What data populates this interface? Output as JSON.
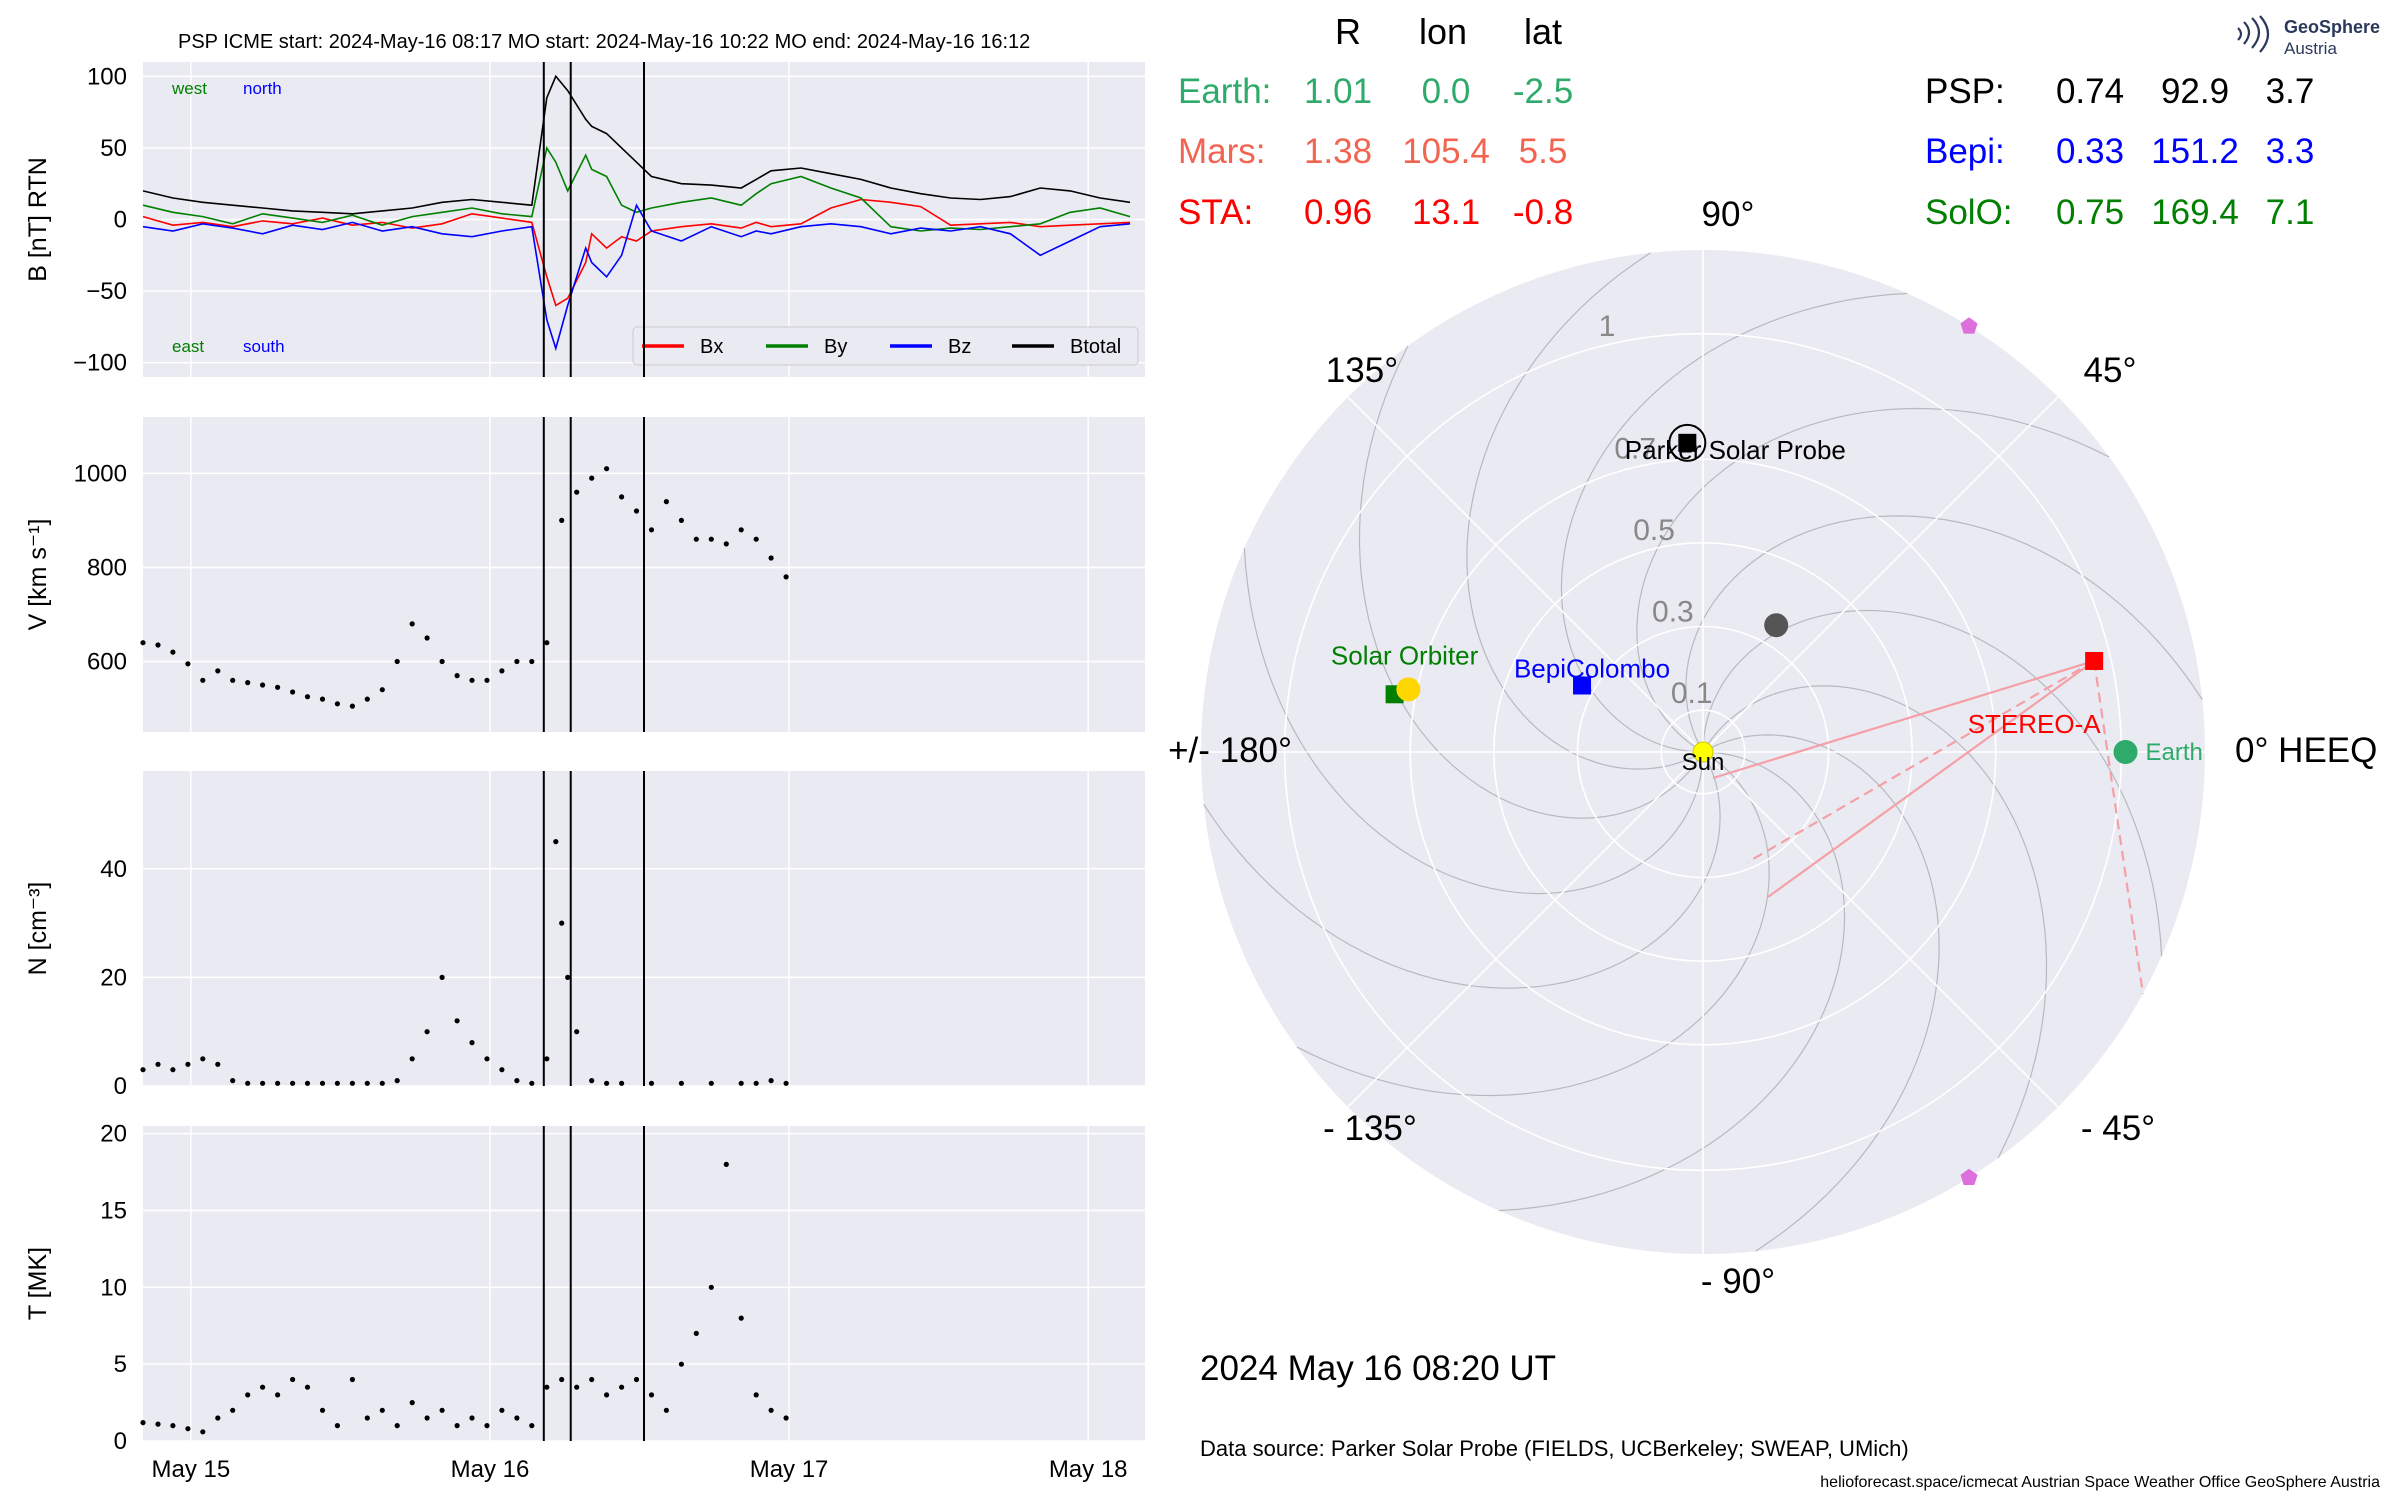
{
  "header": {
    "title": "PSP    ICME start: 2024-May-16 08:17   MO start: 2024-May-16 10:22   MO end: 2024-May-16 16:12",
    "logo_text": [
      "GeoSphere",
      "Austria"
    ]
  },
  "colors": {
    "bx": "#ff0000",
    "by": "#008000",
    "bz": "#0000ff",
    "btotal": "#000000",
    "panel_bg": "#eaeaf2",
    "earth": "#2eaa6a",
    "mars": "#f36450",
    "sta": "#ff0000",
    "bepi": "#0000ff",
    "solo": "#007f00",
    "psp": "#000000",
    "sun": "#ffff00",
    "sta_lines": "#f4a0a6",
    "pentagon": "#dc6fdc",
    "planet_grey": "#555555",
    "solo_yellow": "#ffd700"
  },
  "positions_table": {
    "headers": [
      "R",
      "lon",
      "lat"
    ],
    "left": [
      {
        "name": "Earth:",
        "R": "1.01",
        "lon": "0.0",
        "lat": "-2.5",
        "color": "#2eaa6a"
      },
      {
        "name": "Mars:",
        "R": "1.38",
        "lon": "105.4",
        "lat": "5.5",
        "color": "#f36450"
      },
      {
        "name": "STA:",
        "R": "0.96",
        "lon": "13.1",
        "lat": "-0.8",
        "color": "#ff0000"
      }
    ],
    "right": [
      {
        "name": "PSP:",
        "R": "0.74",
        "lon": "92.9",
        "lat": "3.7",
        "color": "#000000"
      },
      {
        "name": "Bepi:",
        "R": "0.33",
        "lon": "151.2",
        "lat": "3.3",
        "color": "#0000ff"
      },
      {
        "name": "SolO:",
        "R": "0.75",
        "lon": "169.4",
        "lat": "7.1",
        "color": "#007f00"
      }
    ]
  },
  "footer": {
    "datetime": "2024 May 16  08:20 UT",
    "source": "Data source: Parker Solar Probe (FIELDS, UCBerkeley; SWEAP, UMich)",
    "credits": "helioforecast.space/icmecat   Austrian Space Weather Office   GeoSphere Austria"
  },
  "chart_data": [
    {
      "type": "line",
      "panel": "B",
      "ylabel": "B [nT] RTN",
      "ylim": [
        -110,
        110
      ],
      "yticks": [
        100,
        50,
        0,
        -50,
        -100
      ],
      "ytick_labels": [
        "100",
        "50",
        "0",
        "−50",
        "−100"
      ],
      "xlim": [
        0,
        3.35
      ],
      "xlim_note_days_since": "2024-05-15 00:00",
      "grid": true,
      "annotations": [
        "west",
        "north",
        "east",
        "south"
      ],
      "legend": {
        "placement": "lower-right",
        "entries": [
          "Bx",
          "By",
          "Bz",
          "Btotal"
        ]
      },
      "series": [
        {
          "name": "Bx",
          "x": [
            0.0,
            0.1,
            0.2,
            0.3,
            0.4,
            0.5,
            0.6,
            0.7,
            0.8,
            0.9,
            1.0,
            1.1,
            1.2,
            1.3,
            1.35,
            1.38,
            1.42,
            1.48,
            1.5,
            1.55,
            1.6,
            1.65,
            1.7,
            1.8,
            1.9,
            2.0,
            2.05,
            2.1,
            2.2,
            2.3,
            2.4,
            2.5,
            2.6,
            2.7,
            2.8,
            2.9,
            3.0,
            3.1,
            3.2,
            3.3
          ],
          "y": [
            2,
            -4,
            -2,
            -5,
            -1,
            -3,
            1,
            -4,
            -2,
            -6,
            -3,
            4,
            1,
            -2,
            -40,
            -60,
            -55,
            -30,
            -10,
            -20,
            -12,
            -15,
            -8,
            -5,
            -3,
            -6,
            -2,
            -5,
            -3,
            8,
            14,
            12,
            9,
            -4,
            -3,
            -2,
            -5,
            -4,
            -3,
            -2
          ]
        },
        {
          "name": "By",
          "x": [
            0.0,
            0.1,
            0.2,
            0.3,
            0.4,
            0.5,
            0.6,
            0.7,
            0.8,
            0.9,
            1.0,
            1.1,
            1.2,
            1.3,
            1.35,
            1.38,
            1.42,
            1.48,
            1.5,
            1.55,
            1.6,
            1.65,
            1.7,
            1.8,
            1.9,
            2.0,
            2.05,
            2.1,
            2.2,
            2.3,
            2.4,
            2.5,
            2.6,
            2.7,
            2.8,
            2.9,
            3.0,
            3.1,
            3.2,
            3.3
          ],
          "y": [
            10,
            5,
            2,
            -3,
            4,
            1,
            -2,
            3,
            -4,
            2,
            5,
            8,
            4,
            2,
            50,
            40,
            20,
            45,
            35,
            30,
            10,
            5,
            8,
            12,
            15,
            10,
            18,
            25,
            30,
            22,
            15,
            -5,
            -8,
            -6,
            -7,
            -5,
            -3,
            5,
            8,
            2
          ]
        },
        {
          "name": "Bz",
          "x": [
            0.0,
            0.1,
            0.2,
            0.3,
            0.4,
            0.5,
            0.6,
            0.7,
            0.8,
            0.9,
            1.0,
            1.1,
            1.2,
            1.3,
            1.35,
            1.38,
            1.42,
            1.48,
            1.5,
            1.55,
            1.6,
            1.65,
            1.7,
            1.8,
            1.9,
            2.0,
            2.05,
            2.1,
            2.2,
            2.3,
            2.4,
            2.5,
            2.6,
            2.7,
            2.8,
            2.9,
            3.0,
            3.1,
            3.2,
            3.3
          ],
          "y": [
            -5,
            -8,
            -3,
            -6,
            -10,
            -4,
            -7,
            -2,
            -8,
            -5,
            -10,
            -12,
            -8,
            -5,
            -70,
            -90,
            -60,
            -20,
            -30,
            -40,
            -25,
            10,
            -8,
            -15,
            -5,
            -12,
            -8,
            -10,
            -5,
            -3,
            -5,
            -10,
            -6,
            -8,
            -5,
            -10,
            -25,
            -15,
            -5,
            -3
          ]
        },
        {
          "name": "Btotal",
          "x": [
            0.0,
            0.1,
            0.2,
            0.3,
            0.4,
            0.5,
            0.6,
            0.7,
            0.8,
            0.9,
            1.0,
            1.1,
            1.2,
            1.3,
            1.35,
            1.38,
            1.42,
            1.48,
            1.5,
            1.55,
            1.6,
            1.65,
            1.7,
            1.8,
            1.9,
            2.0,
            2.05,
            2.1,
            2.2,
            2.3,
            2.4,
            2.5,
            2.6,
            2.7,
            2.8,
            2.9,
            3.0,
            3.1,
            3.2,
            3.3
          ],
          "y": [
            20,
            15,
            12,
            10,
            8,
            6,
            5,
            4,
            6,
            8,
            12,
            14,
            12,
            10,
            85,
            100,
            90,
            70,
            65,
            60,
            50,
            40,
            30,
            25,
            24,
            22,
            28,
            34,
            36,
            32,
            28,
            22,
            18,
            15,
            14,
            16,
            22,
            20,
            15,
            12
          ]
        }
      ]
    },
    {
      "type": "scatter",
      "panel": "V",
      "ylabel": "V [km s⁻¹]",
      "ylim": [
        450,
        1120
      ],
      "yticks": [
        600,
        800,
        1000
      ],
      "xlim": [
        0,
        3.35
      ],
      "grid": true,
      "series": [
        {
          "name": "V",
          "x": [
            0.0,
            0.05,
            0.1,
            0.15,
            0.2,
            0.25,
            0.3,
            0.35,
            0.4,
            0.45,
            0.5,
            0.55,
            0.6,
            0.65,
            0.7,
            0.75,
            0.8,
            0.85,
            0.9,
            0.95,
            1.0,
            1.05,
            1.1,
            1.15,
            1.2,
            1.25,
            1.3,
            1.35,
            1.4,
            1.45,
            1.5,
            1.55,
            1.6,
            1.65,
            1.7,
            1.75,
            1.8,
            1.85,
            1.9,
            1.95,
            2.0,
            2.05,
            2.1,
            2.15
          ],
          "y": [
            640,
            635,
            620,
            595,
            560,
            580,
            560,
            555,
            550,
            545,
            535,
            525,
            520,
            510,
            505,
            520,
            540,
            600,
            680,
            650,
            600,
            570,
            560,
            560,
            580,
            600,
            600,
            640,
            900,
            960,
            990,
            1010,
            950,
            920,
            880,
            940,
            900,
            860,
            860,
            850,
            880,
            860,
            820,
            780
          ]
        }
      ]
    },
    {
      "type": "scatter",
      "panel": "N",
      "ylabel": "N [cm⁻³]",
      "ylim": [
        0,
        58
      ],
      "yticks": [
        0,
        20,
        40
      ],
      "xlim": [
        0,
        3.35
      ],
      "grid": true,
      "series": [
        {
          "name": "N",
          "x": [
            0.0,
            0.05,
            0.1,
            0.15,
            0.2,
            0.25,
            0.3,
            0.35,
            0.4,
            0.45,
            0.5,
            0.55,
            0.6,
            0.65,
            0.7,
            0.75,
            0.8,
            0.85,
            0.9,
            0.95,
            1.0,
            1.05,
            1.1,
            1.15,
            1.2,
            1.25,
            1.3,
            1.35,
            1.38,
            1.4,
            1.42,
            1.45,
            1.5,
            1.55,
            1.6,
            1.7,
            1.8,
            1.9,
            2.0,
            2.05,
            2.1,
            2.15
          ],
          "y": [
            3,
            4,
            3,
            4,
            5,
            4,
            1,
            0.5,
            0.5,
            0.5,
            0.5,
            0.5,
            0.5,
            0.5,
            0.5,
            0.5,
            0.5,
            1,
            5,
            10,
            20,
            12,
            8,
            5,
            3,
            1,
            0.5,
            5,
            45,
            30,
            20,
            10,
            1,
            0.5,
            0.5,
            0.5,
            0.5,
            0.5,
            0.5,
            0.5,
            1,
            0.5
          ]
        }
      ]
    },
    {
      "type": "scatter",
      "panel": "T",
      "ylabel": "T [MK]",
      "xlabel": "",
      "ylim": [
        0,
        20.5
      ],
      "yticks": [
        0,
        5,
        10,
        15,
        20
      ],
      "xlim": [
        0,
        3.35
      ],
      "xtick_values": [
        0.16,
        1.16,
        2.16,
        3.16
      ],
      "xtick_labels": [
        "May 15",
        "May 16",
        "May 17",
        "May 18"
      ],
      "grid": true,
      "series": [
        {
          "name": "T",
          "x": [
            0.0,
            0.05,
            0.1,
            0.15,
            0.2,
            0.25,
            0.3,
            0.35,
            0.4,
            0.45,
            0.5,
            0.55,
            0.6,
            0.65,
            0.7,
            0.75,
            0.8,
            0.85,
            0.9,
            0.95,
            1.0,
            1.05,
            1.1,
            1.15,
            1.2,
            1.25,
            1.3,
            1.35,
            1.4,
            1.45,
            1.5,
            1.55,
            1.6,
            1.65,
            1.7,
            1.75,
            1.8,
            1.85,
            1.9,
            1.95,
            2.0,
            2.05,
            2.1,
            2.15
          ],
          "y": [
            1.2,
            1.1,
            1.0,
            0.8,
            0.6,
            1.5,
            2.0,
            3.0,
            3.5,
            3.0,
            4.0,
            3.5,
            2.0,
            1.0,
            4.0,
            1.5,
            2.0,
            1.0,
            2.5,
            1.5,
            2.0,
            1.0,
            1.5,
            1.0,
            2.0,
            1.5,
            1.0,
            3.5,
            4.0,
            3.5,
            4.0,
            3.0,
            3.5,
            4.0,
            3.0,
            2.0,
            5.0,
            7.0,
            10.0,
            18.0,
            8.0,
            3.0,
            2.0,
            1.5
          ]
        }
      ],
      "vlines_x": [
        1.34,
        1.43,
        1.675
      ]
    },
    {
      "type": "scatter",
      "panel": "polar",
      "rlim": [
        0,
        1.2
      ],
      "rticks": [
        0.1,
        0.3,
        0.5,
        0.7,
        1.0
      ],
      "angle_labels": [
        "0° HEEQ",
        "45°",
        "90°",
        "135°",
        "+/- 180°",
        "- 135°",
        "- 90°",
        "- 45°"
      ],
      "angle_values": [
        0,
        45,
        90,
        135,
        180,
        -135,
        -90,
        -45
      ],
      "bodies": [
        {
          "name": "Sun",
          "label": "Sun",
          "r": 0,
          "lon": 0,
          "marker": "circle",
          "color": "#ffff00"
        },
        {
          "name": "Earth",
          "label": "Earth",
          "r": 1.01,
          "lon": 0.0,
          "marker": "circle",
          "color": "#2eaa6a"
        },
        {
          "name": "STEREO-A",
          "label": "STEREO-A",
          "r": 0.96,
          "lon": 13.1,
          "marker": "square",
          "color": "#ff0000"
        },
        {
          "name": "Parker Solar Probe",
          "label": "Parker Solar Probe",
          "r": 0.74,
          "lon": 92.9,
          "marker": "square",
          "color": "#000000"
        },
        {
          "name": "BepiColombo",
          "label": "BepiColombo",
          "r": 0.33,
          "lon": 151.2,
          "marker": "square",
          "color": "#0000ff"
        },
        {
          "name": "Solar Orbiter",
          "label": "Solar Orbiter",
          "r": 0.75,
          "lon": 169.4,
          "marker": "square",
          "color": "#007f00"
        },
        {
          "name": "Venus",
          "label": "",
          "r": 0.72,
          "lon": 168.0,
          "marker": "circle",
          "color": "#ffd700"
        },
        {
          "name": "Mercury",
          "label": "",
          "r": 0.35,
          "lon": 60.0,
          "marker": "circle",
          "color": "#555555"
        },
        {
          "name": "Pentagon1",
          "label": "",
          "r": 1.2,
          "lon": 58.0,
          "marker": "pentagon",
          "color": "#dc6fdc"
        },
        {
          "name": "Pentagon2",
          "label": "",
          "r": 1.2,
          "lon": -58.0,
          "marker": "pentagon",
          "color": "#dc6fdc"
        }
      ]
    }
  ]
}
